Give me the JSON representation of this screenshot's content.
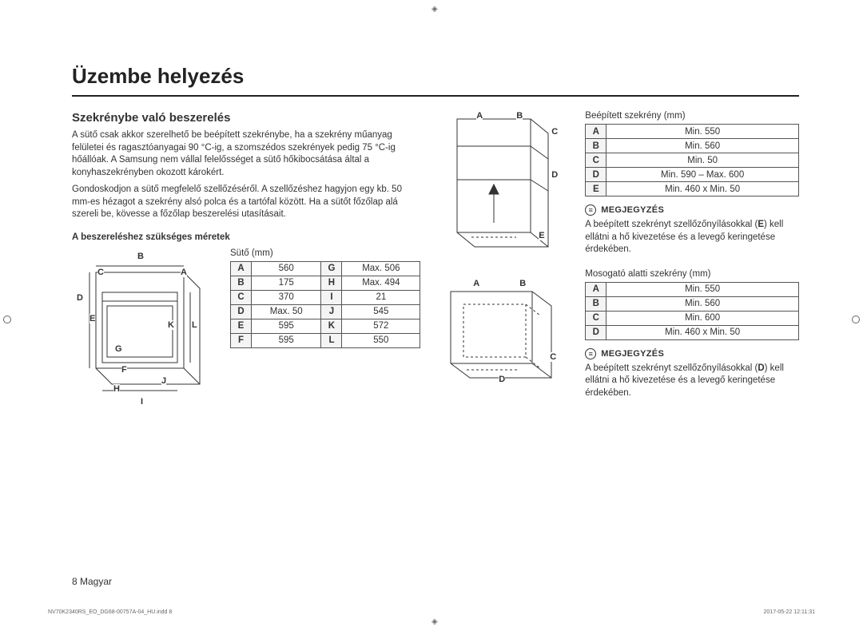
{
  "page": {
    "title": "Üzembe helyezés",
    "subtitle": "Szekrénybe való beszerelés",
    "para1": "A sütő csak akkor szerelhető be beépített szekrénybe, ha a szekrény műanyag felületei és ragasztóanyagai 90 °C-ig, a szomszédos szekrények pedig 75 °C-ig hőállóak. A Samsung nem vállal felelősséget a sütő hőkibocsátása által a konyhaszekrényben okozott károkért.",
    "para2": "Gondoskodjon a sütő megfelelő szellőzéséről. A szellőzéshez hagyjon egy kb. 50 mm-es hézagot a szekrény alsó polca és a tartófal között. Ha a sütőt főzőlap alá szereli be, kövesse a főzőlap beszerelési utasításait.",
    "dims_required_label": "A beszereléshez szükséges méretek",
    "oven_caption": "Sütő (mm)"
  },
  "oven_table": {
    "rows": [
      {
        "k1": "A",
        "v1": "560",
        "k2": "G",
        "v2": "Max. 506"
      },
      {
        "k1": "B",
        "v1": "175",
        "k2": "H",
        "v2": "Max. 494"
      },
      {
        "k1": "C",
        "v1": "370",
        "k2": "I",
        "v2": "21"
      },
      {
        "k1": "D",
        "v1": "Max. 50",
        "k2": "J",
        "v2": "545"
      },
      {
        "k1": "E",
        "v1": "595",
        "k2": "K",
        "v2": "572"
      },
      {
        "k1": "F",
        "v1": "595",
        "k2": "L",
        "v2": "550"
      }
    ]
  },
  "oven_labels": [
    "A",
    "B",
    "C",
    "D",
    "E",
    "F",
    "G",
    "H",
    "I",
    "J",
    "K",
    "L"
  ],
  "diagram2_labels": [
    "A",
    "B",
    "C",
    "D",
    "E"
  ],
  "diagram3_labels": [
    "A",
    "B",
    "C",
    "D"
  ],
  "cabinet1": {
    "caption": "Beépített szekrény (mm)",
    "rows": [
      {
        "k": "A",
        "v": "Min. 550"
      },
      {
        "k": "B",
        "v": "Min. 560"
      },
      {
        "k": "C",
        "v": "Min. 50"
      },
      {
        "k": "D",
        "v": "Min. 590 – Max. 600"
      },
      {
        "k": "E",
        "v": "Min. 460 x Min. 50"
      }
    ],
    "note_label": "MEGJEGYZÉS",
    "note_text_a": "A beépített szekrényt szellőzőnyílásokkal (",
    "note_text_b": ") kell ellátni a hő kivezetése és a levegő keringetése érdekében.",
    "note_letter": "E"
  },
  "cabinet2": {
    "caption": "Mosogató alatti szekrény (mm)",
    "rows": [
      {
        "k": "A",
        "v": "Min. 550"
      },
      {
        "k": "B",
        "v": "Min. 560"
      },
      {
        "k": "C",
        "v": "Min. 600"
      },
      {
        "k": "D",
        "v": "Min. 460 x Min. 50"
      }
    ],
    "note_label": "MEGJEGYZÉS",
    "note_text_a": "A beépített szekrényt szellőzőnyílásokkal (",
    "note_text_b": ") kell ellátni a hő kivezetése és a levegő keringetése érdekében.",
    "note_letter": "D"
  },
  "footer": {
    "page": "8  Magyar",
    "left": "NV70K2340RS_EO_DG68-00757A-04_HU.indd   8",
    "right": "2017-05-22   12:11:31"
  }
}
